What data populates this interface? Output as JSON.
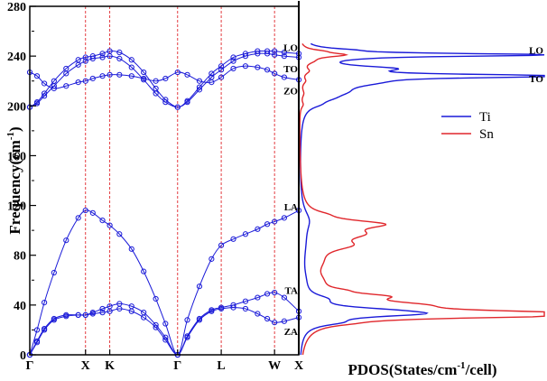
{
  "chart_data": [
    {
      "type": "line",
      "panel": "phonon-dispersion",
      "title": "",
      "ylabel": "Frequency(cm",
      "ylabel_sup": "-1",
      "ylabel_end": ")",
      "ylim": [
        0,
        280
      ],
      "yticks": [
        0,
        40,
        80,
        120,
        160,
        200,
        240,
        280
      ],
      "path_positions": [
        0,
        2.3,
        3.3,
        6.1,
        7.9,
        10.1,
        11.1
      ],
      "xticks": [
        {
          "pos": 0,
          "label": "Γ"
        },
        {
          "pos": 2.3,
          "label": "X"
        },
        {
          "pos": 3.3,
          "label": "K"
        },
        {
          "pos": 6.1,
          "label": "Γ"
        },
        {
          "pos": 7.9,
          "label": "L"
        },
        {
          "pos": 10.1,
          "label": "W"
        },
        {
          "pos": 11.1,
          "label": "X"
        }
      ],
      "vlines": [
        2.3,
        3.3,
        6.1,
        7.9,
        10.1
      ],
      "grid": false,
      "branches": [
        {
          "name": "",
          "group": "acoustic",
          "values": [
            [
              0,
              0
            ],
            [
              0.3,
              10
            ],
            [
              0.6,
              20
            ],
            [
              1.0,
              28
            ],
            [
              1.5,
              31
            ],
            [
              2.0,
              32
            ],
            [
              2.3,
              32
            ],
            [
              2.6,
              33
            ],
            [
              3.0,
              34
            ],
            [
              3.3,
              35
            ],
            [
              3.7,
              37
            ],
            [
              4.2,
              35
            ],
            [
              4.7,
              30
            ],
            [
              5.2,
              22
            ],
            [
              5.6,
              12
            ],
            [
              6.1,
              0
            ],
            [
              6.5,
              14
            ],
            [
              7.0,
              28
            ],
            [
              7.5,
              35
            ],
            [
              7.9,
              37
            ],
            [
              8.4,
              38
            ],
            [
              8.9,
              37
            ],
            [
              9.4,
              33
            ],
            [
              9.8,
              29
            ],
            [
              10.1,
              26
            ],
            [
              10.5,
              27
            ],
            [
              11.1,
              30
            ]
          ]
        },
        {
          "name": "",
          "group": "acoustic",
          "values": [
            [
              0,
              0
            ],
            [
              0.3,
              11
            ],
            [
              0.6,
              21
            ],
            [
              1.0,
              29
            ],
            [
              1.5,
              32
            ],
            [
              2.0,
              32
            ],
            [
              2.3,
              32
            ],
            [
              2.6,
              34
            ],
            [
              3.0,
              37
            ],
            [
              3.3,
              39
            ],
            [
              3.7,
              41
            ],
            [
              4.2,
              39
            ],
            [
              4.7,
              34
            ],
            [
              5.2,
              24
            ],
            [
              5.6,
              14
            ],
            [
              6.1,
              0
            ],
            [
              6.5,
              15
            ],
            [
              7.0,
              29
            ],
            [
              7.5,
              36
            ],
            [
              7.9,
              38
            ],
            [
              8.4,
              40
            ],
            [
              8.9,
              43
            ],
            [
              9.4,
              46
            ],
            [
              9.8,
              49
            ],
            [
              10.1,
              50
            ],
            [
              10.5,
              46
            ],
            [
              11.1,
              35
            ]
          ]
        },
        {
          "name": "",
          "group": "acoustic",
          "values": [
            [
              0,
              0
            ],
            [
              0.3,
              20
            ],
            [
              0.6,
              42
            ],
            [
              1.0,
              66
            ],
            [
              1.5,
              92
            ],
            [
              2.0,
              110
            ],
            [
              2.3,
              116
            ],
            [
              2.6,
              114
            ],
            [
              3.0,
              108
            ],
            [
              3.3,
              104
            ],
            [
              3.7,
              97
            ],
            [
              4.2,
              85
            ],
            [
              4.7,
              67
            ],
            [
              5.2,
              45
            ],
            [
              5.6,
              25
            ],
            [
              6.1,
              0
            ],
            [
              6.5,
              28
            ],
            [
              7.0,
              55
            ],
            [
              7.5,
              77
            ],
            [
              7.9,
              88
            ],
            [
              8.4,
              93
            ],
            [
              8.9,
              97
            ],
            [
              9.4,
              101
            ],
            [
              9.8,
              105
            ],
            [
              10.1,
              107
            ],
            [
              10.5,
              110
            ],
            [
              11.1,
              116
            ]
          ]
        },
        {
          "name": "",
          "group": "optical",
          "values": [
            [
              0,
              199
            ],
            [
              0.3,
              202
            ],
            [
              0.6,
              208
            ],
            [
              1.0,
              216
            ],
            [
              1.5,
              226
            ],
            [
              2.0,
              233
            ],
            [
              2.3,
              236
            ],
            [
              2.6,
              238
            ],
            [
              3.0,
              239
            ],
            [
              3.3,
              240
            ],
            [
              3.7,
              238
            ],
            [
              4.2,
              231
            ],
            [
              4.7,
              221
            ],
            [
              5.2,
              210
            ],
            [
              5.6,
              203
            ],
            [
              6.1,
              199
            ],
            [
              6.5,
              203
            ],
            [
              7.0,
              213
            ],
            [
              7.5,
              223
            ],
            [
              7.9,
              229
            ],
            [
              8.4,
              236
            ],
            [
              8.9,
              240
            ],
            [
              9.4,
              242
            ],
            [
              9.8,
              242
            ],
            [
              10.1,
              241
            ],
            [
              10.5,
              240
            ],
            [
              11.1,
              239
            ]
          ]
        },
        {
          "name": "",
          "group": "optical",
          "values": [
            [
              0,
              199
            ],
            [
              0.3,
              203
            ],
            [
              0.6,
              210
            ],
            [
              1.0,
              220
            ],
            [
              1.5,
              230
            ],
            [
              2.0,
              237
            ],
            [
              2.3,
              239
            ],
            [
              2.6,
              240
            ],
            [
              3.0,
              242
            ],
            [
              3.3,
              244
            ],
            [
              3.7,
              243
            ],
            [
              4.2,
              237
            ],
            [
              4.7,
              227
            ],
            [
              5.2,
              214
            ],
            [
              5.6,
              205
            ],
            [
              6.1,
              199
            ],
            [
              6.5,
              204
            ],
            [
              7.0,
              215
            ],
            [
              7.5,
              226
            ],
            [
              7.9,
              232
            ],
            [
              8.4,
              239
            ],
            [
              8.9,
              242
            ],
            [
              9.4,
              244
            ],
            [
              9.8,
              244
            ],
            [
              10.1,
              244
            ],
            [
              10.5,
              243
            ],
            [
              11.1,
              242
            ]
          ]
        },
        {
          "name": "",
          "group": "optical",
          "values": [
            [
              0,
              227
            ],
            [
              0.3,
              224
            ],
            [
              0.6,
              218
            ],
            [
              1.0,
              214
            ],
            [
              1.5,
              216
            ],
            [
              2.0,
              219
            ],
            [
              2.3,
              220
            ],
            [
              2.6,
              222
            ],
            [
              3.0,
              224
            ],
            [
              3.3,
              225
            ],
            [
              3.7,
              225
            ],
            [
              4.2,
              224
            ],
            [
              4.7,
              222
            ],
            [
              5.2,
              220
            ],
            [
              5.6,
              222
            ],
            [
              6.1,
              227
            ],
            [
              6.5,
              225
            ],
            [
              7.0,
              220
            ],
            [
              7.5,
              219
            ],
            [
              7.9,
              223
            ],
            [
              8.4,
              230
            ],
            [
              8.9,
              232
            ],
            [
              9.4,
              231
            ],
            [
              9.8,
              229
            ],
            [
              10.1,
              226
            ],
            [
              10.5,
              223
            ],
            [
              11.1,
              221
            ]
          ]
        }
      ],
      "annotations": [
        {
          "label": "LO",
          "y": 247
        },
        {
          "label": "TO",
          "y": 230
        },
        {
          "label": "ZO",
          "y": 212
        },
        {
          "label": "LA",
          "y": 119
        },
        {
          "label": "TA",
          "y": 52
        },
        {
          "label": "ZA",
          "y": 19
        }
      ],
      "colors": {
        "branch": "#1a1ad8",
        "vline": "#e0262b"
      }
    },
    {
      "type": "line",
      "panel": "pdos",
      "xlabel": "PDOS(States/cm",
      "xlabel_sup": "-1",
      "xlabel_end": "/cell)",
      "ylim": [
        0,
        280
      ],
      "xlim": [
        0,
        1
      ],
      "legend": "right",
      "series": [
        {
          "name": "Ti",
          "color": "#1a1ad8",
          "peaks": [
            [
              26,
              0.1,
              3
            ],
            [
              33,
              0.4,
              3
            ],
            [
              36,
              0.18,
              3
            ],
            [
              45,
              0.07,
              4
            ],
            [
              60,
              0.012,
              12
            ],
            [
              90,
              0.018,
              20
            ],
            [
              108,
              0.03,
              10
            ],
            [
              201,
              0.03,
              3
            ],
            [
              206,
              0.05,
              4
            ],
            [
              211,
              0.1,
              5
            ],
            [
              219,
              0.22,
              5
            ],
            [
              224,
              0.99,
              1.5
            ],
            [
              230,
              0.28,
              2.5
            ],
            [
              238,
              0.05,
              2
            ],
            [
              241,
              0.985,
              1.4
            ],
            [
              245,
              0.1,
              1.5
            ]
          ]
        },
        {
          "name": "Sn",
          "color": "#e0262b",
          "peaks": [
            [
              25,
              0.05,
              2
            ],
            [
              32,
              0.97,
              2.5
            ],
            [
              34,
              0.4,
              3
            ],
            [
              40,
              0.32,
              4
            ],
            [
              47,
              0.22,
              3
            ],
            [
              52,
              0.05,
              2
            ],
            [
              60,
              0.04,
              8
            ],
            [
              75,
              0.05,
              10
            ],
            [
              88,
              0.14,
              5
            ],
            [
              97,
              0.17,
              5
            ],
            [
              105,
              0.28,
              4
            ],
            [
              113,
              0.04,
              3
            ],
            [
              201,
              0.012,
              3
            ],
            [
              210,
              0.014,
              4
            ],
            [
              220,
              0.018,
              3
            ],
            [
              228,
              0.03,
              3
            ],
            [
              236,
              0.035,
              3
            ],
            [
              241,
              0.17,
              2
            ],
            [
              244,
              0.05,
              1.5
            ]
          ]
        }
      ],
      "annotations": [
        {
          "label": "LO",
          "y": 245,
          "side": "right"
        },
        {
          "label": "TO",
          "y": 222,
          "side": "right"
        }
      ]
    }
  ]
}
